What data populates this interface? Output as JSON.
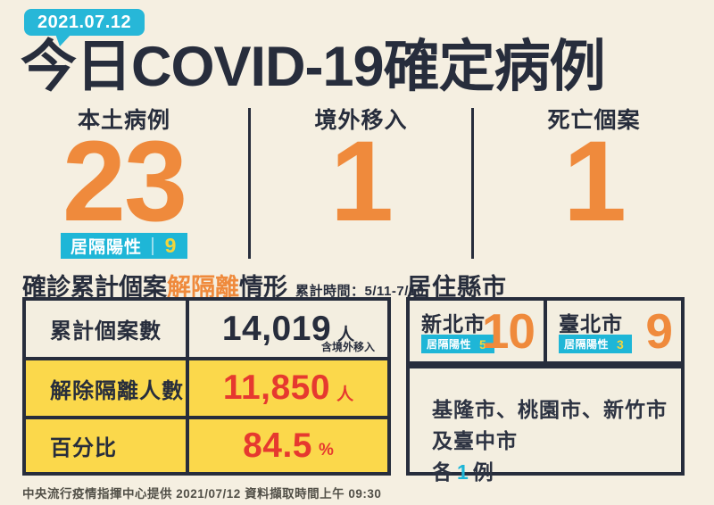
{
  "palette": {
    "background": "#f5efe1",
    "ink": "#272d3c",
    "orange": "#ef8a3c",
    "cyan": "#1eb6d7",
    "badge_yellow": "#f2d53c",
    "row_yellow": "#fbd84b",
    "red": "#e6392f"
  },
  "header": {
    "date_badge": "2021.07.12",
    "title": "今日COVID-19確定病例"
  },
  "stats": [
    {
      "label": "本土病例",
      "value": "23",
      "badge_label": "居隔陽性",
      "badge_value": "9"
    },
    {
      "label": "境外移入",
      "value": "1"
    },
    {
      "label": "死亡個案",
      "value": "1"
    }
  ],
  "isolation_section": {
    "title_prefix": "確診累計個案",
    "title_highlight": "解隔離",
    "title_suffix": "情形",
    "period": "累計時間：5/11-7/10",
    "rows": [
      {
        "label": "累計個案數",
        "value": "14,019",
        "unit": "人",
        "note": "含境外移入"
      },
      {
        "label": "解除隔離人數",
        "value": "11,850",
        "unit": "人"
      },
      {
        "label": "百分比",
        "value": "84.5",
        "unit": "%"
      }
    ]
  },
  "residence_section": {
    "title": "居住縣市",
    "cities": [
      {
        "name": "新北市",
        "value": "10",
        "badge_label": "居隔陽性",
        "badge_value": "5"
      },
      {
        "name": "臺北市",
        "value": "9",
        "badge_label": "居隔陽性",
        "badge_value": "3"
      }
    ],
    "note_line1": "基隆市、桃園市、新竹市及臺中市",
    "note_prefix": "各",
    "note_value": "1",
    "note_suffix": "例"
  },
  "footer": {
    "text": "中央流行疫情指揮中心提供 2021/07/12 資料擷取時間上午 09:30"
  },
  "chart_data": [
    {
      "type": "table",
      "title": "今日COVID-19確定病例 2021.07.12",
      "categories": [
        "本土病例",
        "境外移入",
        "死亡個案"
      ],
      "values": [
        23,
        1,
        1
      ],
      "annotations": [
        "本土病例中居隔陽性 9"
      ]
    },
    {
      "type": "table",
      "title": "確診累計個案解隔離情形",
      "subtitle": "累計時間：5/11-7/10",
      "rows": [
        [
          "累計個案數",
          "14,019 人（含境外移入）"
        ],
        [
          "解除隔離人數",
          "11,850 人"
        ],
        [
          "百分比",
          "84.5 %"
        ]
      ]
    },
    {
      "type": "table",
      "title": "居住縣市",
      "rows": [
        [
          "新北市",
          "10（居隔陽性 5）"
        ],
        [
          "臺北市",
          "9（居隔陽性 3）"
        ],
        [
          "基隆市、桃園市、新竹市及臺中市",
          "各 1 例"
        ]
      ]
    }
  ]
}
